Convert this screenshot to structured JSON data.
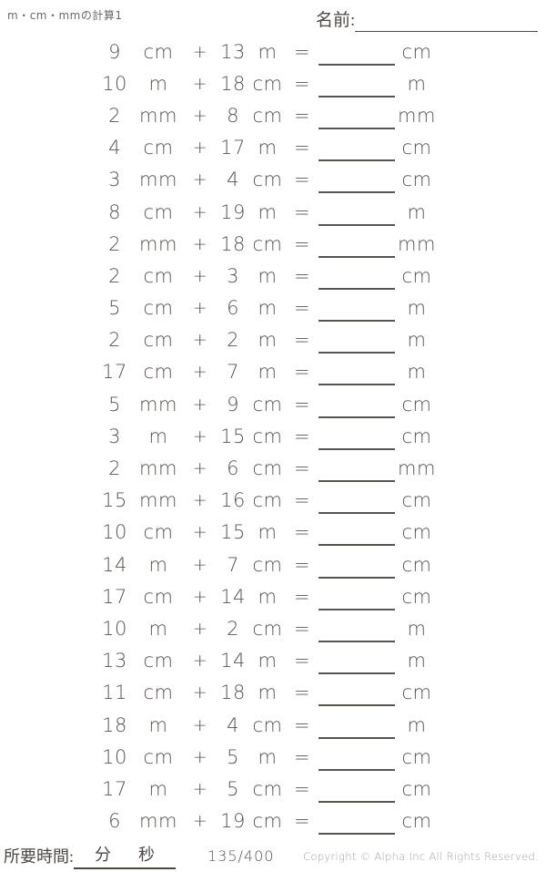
{
  "header": {
    "title": "m・cm・mmの計算1",
    "name_label": "名前:"
  },
  "symbols": {
    "plus": "+",
    "equals": "="
  },
  "problems": [
    {
      "a": "9",
      "a_unit": "cm",
      "b": "13",
      "b_unit": "m",
      "answer_unit": "cm"
    },
    {
      "a": "10",
      "a_unit": "m",
      "b": "18",
      "b_unit": "cm",
      "answer_unit": "m"
    },
    {
      "a": "2",
      "a_unit": "mm",
      "b": "8",
      "b_unit": "cm",
      "answer_unit": "mm"
    },
    {
      "a": "4",
      "a_unit": "cm",
      "b": "17",
      "b_unit": "m",
      "answer_unit": "cm"
    },
    {
      "a": "3",
      "a_unit": "mm",
      "b": "4",
      "b_unit": "cm",
      "answer_unit": "cm"
    },
    {
      "a": "8",
      "a_unit": "cm",
      "b": "19",
      "b_unit": "m",
      "answer_unit": "m"
    },
    {
      "a": "2",
      "a_unit": "mm",
      "b": "18",
      "b_unit": "cm",
      "answer_unit": "mm"
    },
    {
      "a": "2",
      "a_unit": "cm",
      "b": "3",
      "b_unit": "m",
      "answer_unit": "cm"
    },
    {
      "a": "5",
      "a_unit": "cm",
      "b": "6",
      "b_unit": "m",
      "answer_unit": "m"
    },
    {
      "a": "2",
      "a_unit": "cm",
      "b": "2",
      "b_unit": "m",
      "answer_unit": "m"
    },
    {
      "a": "17",
      "a_unit": "cm",
      "b": "7",
      "b_unit": "m",
      "answer_unit": "m"
    },
    {
      "a": "5",
      "a_unit": "mm",
      "b": "9",
      "b_unit": "cm",
      "answer_unit": "cm"
    },
    {
      "a": "3",
      "a_unit": "m",
      "b": "15",
      "b_unit": "cm",
      "answer_unit": "cm"
    },
    {
      "a": "2",
      "a_unit": "mm",
      "b": "6",
      "b_unit": "cm",
      "answer_unit": "mm"
    },
    {
      "a": "15",
      "a_unit": "mm",
      "b": "16",
      "b_unit": "cm",
      "answer_unit": "cm"
    },
    {
      "a": "10",
      "a_unit": "cm",
      "b": "15",
      "b_unit": "m",
      "answer_unit": "cm"
    },
    {
      "a": "14",
      "a_unit": "m",
      "b": "7",
      "b_unit": "cm",
      "answer_unit": "cm"
    },
    {
      "a": "17",
      "a_unit": "cm",
      "b": "14",
      "b_unit": "m",
      "answer_unit": "cm"
    },
    {
      "a": "10",
      "a_unit": "m",
      "b": "2",
      "b_unit": "cm",
      "answer_unit": "m"
    },
    {
      "a": "13",
      "a_unit": "cm",
      "b": "14",
      "b_unit": "m",
      "answer_unit": "m"
    },
    {
      "a": "11",
      "a_unit": "cm",
      "b": "18",
      "b_unit": "m",
      "answer_unit": "cm"
    },
    {
      "a": "18",
      "a_unit": "m",
      "b": "4",
      "b_unit": "cm",
      "answer_unit": "m"
    },
    {
      "a": "10",
      "a_unit": "cm",
      "b": "5",
      "b_unit": "m",
      "answer_unit": "cm"
    },
    {
      "a": "17",
      "a_unit": "m",
      "b": "5",
      "b_unit": "cm",
      "answer_unit": "cm"
    },
    {
      "a": "6",
      "a_unit": "mm",
      "b": "19",
      "b_unit": "cm",
      "answer_unit": "cm"
    }
  ],
  "footer": {
    "time_label": "所要時間:",
    "minutes_label": "分",
    "seconds_label": "秒",
    "page_number": "135/400",
    "copyright": "Copyright © Alpha.Inc All Rights Reserved."
  },
  "colors": {
    "ink": "#5a5350",
    "muted_text": "#a8a3a0",
    "title_text": "#6e6864"
  }
}
